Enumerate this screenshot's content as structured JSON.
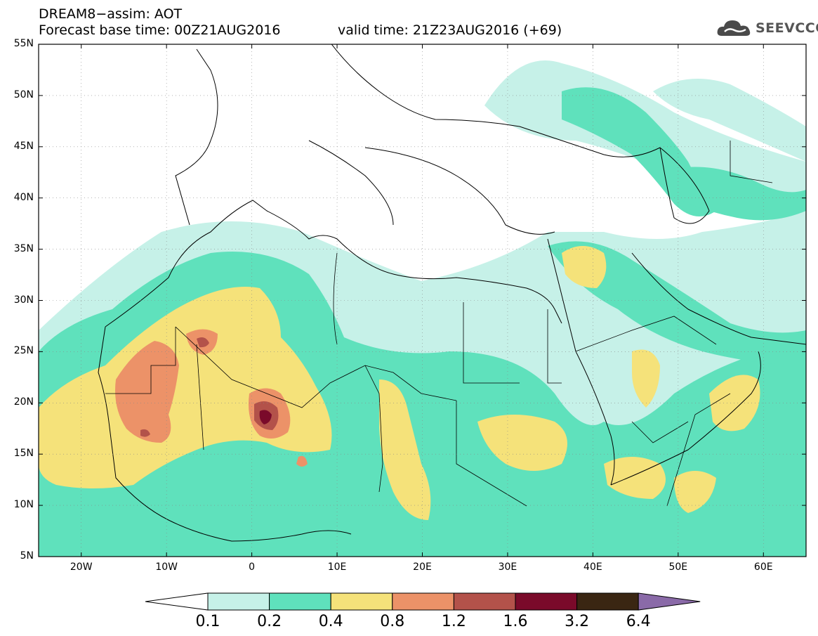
{
  "title": {
    "line1": "DREAM8−assim: AOT",
    "base": "Forecast base time: 00Z21AUG2016",
    "valid": "valid time: 21Z23AUG2016 (+69)"
  },
  "logo": {
    "text": "SEEVCCC",
    "icon": "cloud-icon"
  },
  "map": {
    "projection": "lat-lon",
    "lon_range": [
      -25,
      65
    ],
    "lat_range": [
      5,
      55
    ],
    "grid": true,
    "lat_labels": [
      "55N",
      "50N",
      "45N",
      "40N",
      "35N",
      "30N",
      "25N",
      "20N",
      "15N",
      "10N",
      "5N"
    ],
    "lon_labels": [
      "20W",
      "10W",
      "0",
      "10E",
      "20E",
      "30E",
      "40E",
      "50E",
      "60E"
    ]
  },
  "colorbar": {
    "levels": [
      "0.1",
      "0.2",
      "0.4",
      "0.8",
      "1.2",
      "1.6",
      "3.2",
      "6.4"
    ],
    "colors": [
      "#ffffff",
      "#c6f1e8",
      "#5fe1bc",
      "#f5e27a",
      "#ec9268",
      "#b3524a",
      "#7a0a2a",
      "#3a2612",
      "#8a6aa8"
    ]
  }
}
